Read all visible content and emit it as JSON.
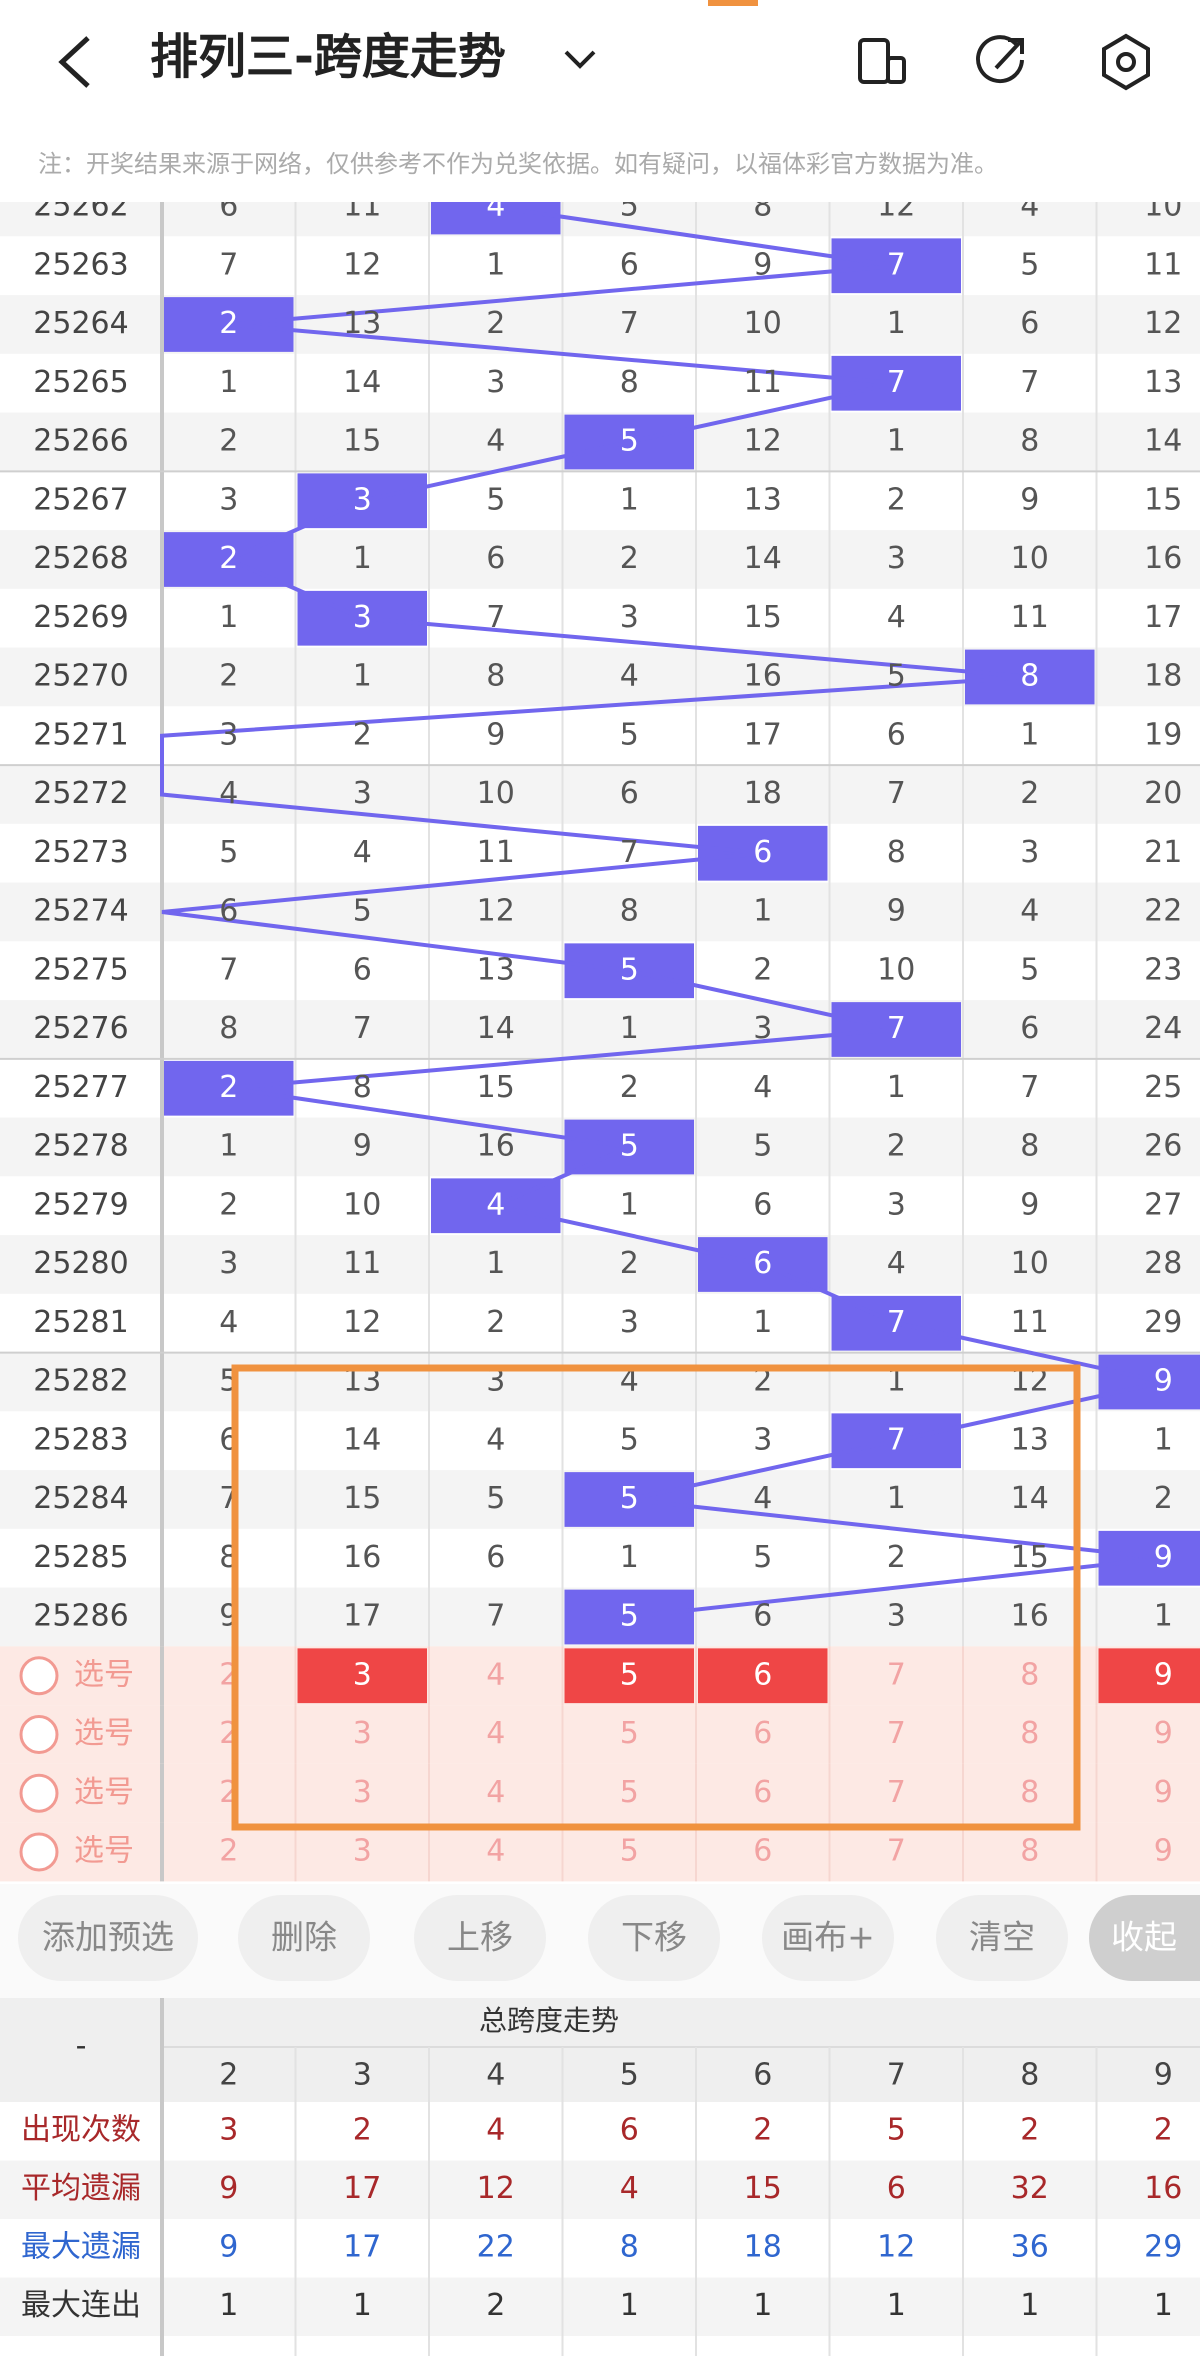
{
  "header": {
    "title": "排列三-跨度走势"
  },
  "notice": "注：开奖结果来源于网络，仅供参考不作为兑奖依据。如有疑问，以福体彩官方数据为准。",
  "table": {
    "hit_color": "#7166ee",
    "rows": [
      {
        "issue": "25262",
        "cells": [
          6,
          11,
          4,
          5,
          8,
          12,
          4,
          10
        ],
        "hit": 2
      },
      {
        "issue": "25263",
        "cells": [
          7,
          12,
          1,
          6,
          9,
          7,
          5,
          11
        ],
        "hit": 5
      },
      {
        "issue": "25264",
        "cells": [
          2,
          13,
          2,
          7,
          10,
          1,
          6,
          12
        ],
        "hit": 0
      },
      {
        "issue": "25265",
        "cells": [
          1,
          14,
          3,
          8,
          11,
          7,
          7,
          13
        ],
        "hit": 5
      },
      {
        "issue": "25266",
        "cells": [
          2,
          15,
          4,
          5,
          12,
          1,
          8,
          14
        ],
        "hit": 3
      },
      {
        "issue": "25267",
        "cells": [
          3,
          3,
          5,
          1,
          13,
          2,
          9,
          15
        ],
        "hit": 1
      },
      {
        "issue": "25268",
        "cells": [
          2,
          1,
          6,
          2,
          14,
          3,
          10,
          16
        ],
        "hit": 0
      },
      {
        "issue": "25269",
        "cells": [
          1,
          3,
          7,
          3,
          15,
          4,
          11,
          17
        ],
        "hit": 1
      },
      {
        "issue": "25270",
        "cells": [
          2,
          1,
          8,
          4,
          16,
          5,
          8,
          18
        ],
        "hit": 6
      },
      {
        "issue": "25271",
        "cells": [
          3,
          2,
          9,
          5,
          17,
          6,
          1,
          19
        ],
        "hit": null
      },
      {
        "issue": "25272",
        "cells": [
          4,
          3,
          10,
          6,
          18,
          7,
          2,
          20
        ],
        "hit": null
      },
      {
        "issue": "25273",
        "cells": [
          5,
          4,
          11,
          7,
          6,
          8,
          3,
          21
        ],
        "hit": 4
      },
      {
        "issue": "25274",
        "cells": [
          6,
          5,
          12,
          8,
          1,
          9,
          4,
          22
        ],
        "hit": null
      },
      {
        "issue": "25275",
        "cells": [
          7,
          6,
          13,
          5,
          2,
          10,
          5,
          23
        ],
        "hit": 3
      },
      {
        "issue": "25276",
        "cells": [
          8,
          7,
          14,
          1,
          3,
          7,
          6,
          24
        ],
        "hit": 5
      },
      {
        "issue": "25277",
        "cells": [
          2,
          8,
          15,
          2,
          4,
          1,
          7,
          25
        ],
        "hit": 0
      },
      {
        "issue": "25278",
        "cells": [
          1,
          9,
          16,
          5,
          5,
          2,
          8,
          26
        ],
        "hit": 3
      },
      {
        "issue": "25279",
        "cells": [
          2,
          10,
          4,
          1,
          6,
          3,
          9,
          27
        ],
        "hit": 2
      },
      {
        "issue": "25280",
        "cells": [
          3,
          11,
          1,
          2,
          6,
          4,
          10,
          28
        ],
        "hit": 4
      },
      {
        "issue": "25281",
        "cells": [
          4,
          12,
          2,
          3,
          1,
          7,
          11,
          29
        ],
        "hit": 5
      },
      {
        "issue": "25282",
        "cells": [
          5,
          13,
          3,
          4,
          2,
          1,
          12,
          9
        ],
        "hit": 7
      },
      {
        "issue": "25283",
        "cells": [
          6,
          14,
          4,
          5,
          3,
          7,
          13,
          1
        ],
        "hit": 5
      },
      {
        "issue": "25284",
        "cells": [
          7,
          15,
          5,
          5,
          4,
          1,
          14,
          2
        ],
        "hit": 3
      },
      {
        "issue": "25285",
        "cells": [
          8,
          16,
          6,
          1,
          5,
          2,
          15,
          9
        ],
        "hit": 7
      },
      {
        "issue": "25286",
        "cells": [
          9,
          17,
          7,
          5,
          6,
          3,
          16,
          1
        ],
        "hit": 3
      }
    ]
  },
  "selection": {
    "rows": [
      {
        "label": "选号",
        "numbers": [
          2,
          3,
          4,
          5,
          6,
          7,
          8,
          9
        ],
        "selected": [
          false,
          true,
          false,
          true,
          true,
          false,
          false,
          true
        ]
      },
      {
        "label": "选号",
        "numbers": [
          2,
          3,
          4,
          5,
          6,
          7,
          8,
          9
        ],
        "selected": [
          false,
          false,
          false,
          false,
          false,
          false,
          false,
          false
        ]
      },
      {
        "label": "选号",
        "numbers": [
          2,
          3,
          4,
          5,
          6,
          7,
          8,
          9
        ],
        "selected": [
          false,
          false,
          false,
          false,
          false,
          false,
          false,
          false
        ]
      },
      {
        "label": "选号",
        "numbers": [
          2,
          3,
          4,
          5,
          6,
          7,
          8,
          9
        ],
        "selected": [
          false,
          false,
          false,
          false,
          false,
          false,
          false,
          false
        ]
      }
    ]
  },
  "buttons": [
    "添加预选",
    "删除",
    "上移",
    "下移",
    "画布+",
    "清空",
    "收起"
  ],
  "stats": {
    "corner": "-",
    "title": "总跨度走势",
    "columns": [
      2,
      3,
      4,
      5,
      6,
      7,
      8,
      9
    ],
    "rows": [
      {
        "label": "出现次数",
        "color": "#a8282a",
        "values": [
          3,
          2,
          4,
          6,
          2,
          5,
          2,
          2
        ]
      },
      {
        "label": "平均遗漏",
        "color": "#a8282a",
        "values": [
          9,
          17,
          12,
          4,
          15,
          6,
          32,
          16
        ]
      },
      {
        "label": "最大遗漏",
        "color": "#2f66cf",
        "values": [
          9,
          17,
          22,
          8,
          18,
          12,
          36,
          29
        ]
      },
      {
        "label": "最大连出",
        "color": "#333333",
        "values": [
          1,
          1,
          2,
          1,
          1,
          1,
          1,
          1
        ]
      }
    ]
  }
}
